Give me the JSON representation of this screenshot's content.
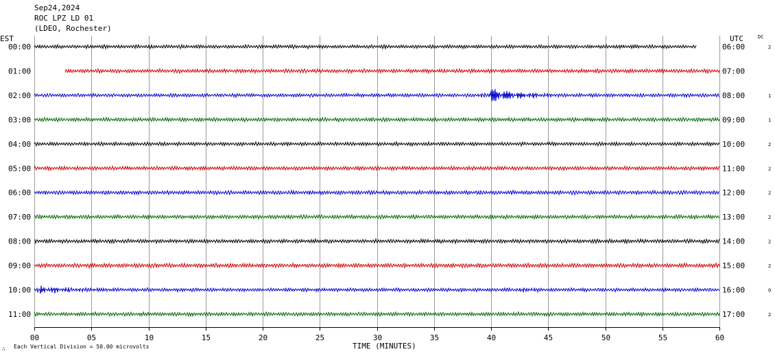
{
  "header": {
    "date": "Sep24,2024",
    "station": "ROC LPZ LD 01",
    "network": "(LDEO, Rochester)"
  },
  "left_timezone": "EST",
  "right_timezone": "UTC",
  "dc_label": "DC",
  "xlabel": "TIME (MINUTES)",
  "footer": {
    "symbol": "∴",
    "scale_text": "Each Vertical Division =   50.00 microvolts"
  },
  "colors": {
    "cycle": [
      "#000000",
      "#cc0000",
      "#0000cc",
      "#006600"
    ],
    "grid": "#9a9a9a"
  },
  "chart_data": {
    "type": "line",
    "subtype": "helicorder",
    "x": {
      "min": 0,
      "max": 60,
      "unit": "minutes",
      "ticks": [
        0,
        5,
        10,
        15,
        20,
        25,
        30,
        35,
        40,
        45,
        50,
        55,
        60
      ],
      "tick_labels": [
        "00",
        "05",
        "10",
        "15",
        "20",
        "25",
        "30",
        "35",
        "40",
        "45",
        "50",
        "55",
        "60"
      ]
    },
    "grid": true,
    "rows": [
      {
        "est": "00:00",
        "utc": "06:00",
        "dc": "2",
        "start_min": 0,
        "end_min": 58,
        "amplitude": 2.0,
        "events": []
      },
      {
        "est": "01:00",
        "utc": "07:00",
        "dc": "",
        "start_min": 2.7,
        "end_min": 60,
        "amplitude": 2.2,
        "events": []
      },
      {
        "est": "02:00",
        "utc": "08:00",
        "dc": "1",
        "start_min": 0,
        "end_min": 60,
        "amplitude": 2.0,
        "events": [
          {
            "minute": 40,
            "amplitude": 9,
            "duration": 6
          }
        ]
      },
      {
        "est": "03:00",
        "utc": "09:00",
        "dc": "1",
        "start_min": 0,
        "end_min": 60,
        "amplitude": 2.2,
        "events": []
      },
      {
        "est": "04:00",
        "utc": "10:00",
        "dc": "2",
        "start_min": 0,
        "end_min": 60,
        "amplitude": 2.0,
        "events": []
      },
      {
        "est": "05:00",
        "utc": "11:00",
        "dc": "2",
        "start_min": 0,
        "end_min": 60,
        "amplitude": 2.2,
        "events": []
      },
      {
        "est": "06:00",
        "utc": "12:00",
        "dc": "2",
        "start_min": 0,
        "end_min": 60,
        "amplitude": 2.2,
        "events": []
      },
      {
        "est": "07:00",
        "utc": "13:00",
        "dc": "2",
        "start_min": 0,
        "end_min": 60,
        "amplitude": 2.2,
        "events": []
      },
      {
        "est": "08:00",
        "utc": "14:00",
        "dc": "2",
        "start_min": 0,
        "end_min": 60,
        "amplitude": 2.2,
        "events": []
      },
      {
        "est": "09:00",
        "utc": "15:00",
        "dc": "2",
        "start_min": 0,
        "end_min": 60,
        "amplitude": 2.4,
        "events": []
      },
      {
        "est": "10:00",
        "utc": "16:00",
        "dc": "0",
        "start_min": 0,
        "end_min": 60,
        "amplitude": 2.0,
        "events": [
          {
            "minute": 0.5,
            "amplitude": 4,
            "duration": 7
          },
          {
            "minute": 43,
            "amplitude": 4,
            "duration": 1
          }
        ]
      },
      {
        "est": "11:00",
        "utc": "17:00",
        "dc": "2",
        "start_min": 0,
        "end_min": 60,
        "amplitude": 2.2,
        "events": []
      }
    ]
  }
}
